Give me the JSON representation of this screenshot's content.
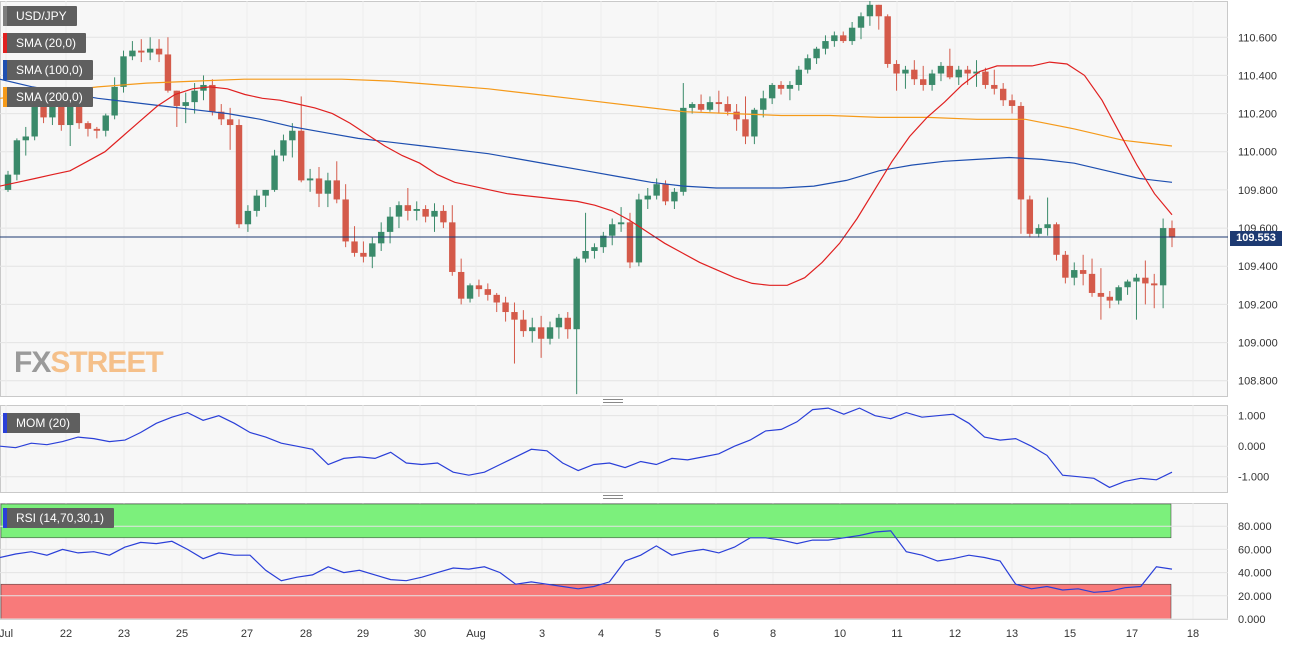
{
  "tags": {
    "symbol": "USD/JPY",
    "sma20": "SMA (20,0)",
    "sma100": "SMA (100,0)",
    "sma200": "SMA (200,0)",
    "mom": "MOM (20)",
    "rsi": "RSI (14,70,30,1)"
  },
  "watermark": {
    "fx": "FX",
    "street": "STREET"
  },
  "last_price": "109.553",
  "colors": {
    "up": "#3a8a6a",
    "down": "#d45a4a",
    "sma20": "#e02020",
    "sma100": "#1e4fb0",
    "sma200": "#f59a1a",
    "mom": "#2a3fd8",
    "rsi": "#2a3fd8",
    "rsi_over": "#7cf07c",
    "rsi_under": "#f87a7a",
    "price_line": "#1d3a72"
  },
  "chart_data": [
    {
      "type": "candlestick",
      "name": "USD/JPY",
      "x_tick_labels": [
        "Jul",
        "22",
        "23",
        "25",
        "27",
        "28",
        "29",
        "30",
        "Aug",
        "3",
        "4",
        "5",
        "6",
        "8",
        "10",
        "11",
        "12",
        "13",
        "15",
        "17",
        "18"
      ],
      "y_tick_labels": [
        "108.800",
        "109.000",
        "109.200",
        "109.400",
        "109.600",
        "109.800",
        "110.000",
        "110.200",
        "110.400",
        "110.600"
      ],
      "ylim": [
        108.72,
        110.79
      ],
      "current_price": 109.553,
      "candles": [
        [
          109.8,
          109.9,
          109.79,
          109.88
        ],
        [
          109.88,
          110.07,
          109.85,
          110.06
        ],
        [
          110.06,
          110.13,
          109.98,
          110.08
        ],
        [
          110.08,
          110.26,
          110.06,
          110.24
        ],
        [
          110.24,
          110.28,
          110.15,
          110.18
        ],
        [
          110.18,
          110.28,
          110.14,
          110.25
        ],
        [
          110.25,
          110.29,
          110.11,
          110.14
        ],
        [
          110.14,
          110.29,
          110.03,
          110.26
        ],
        [
          110.26,
          110.28,
          110.12,
          110.15
        ],
        [
          110.15,
          110.16,
          110.08,
          110.12
        ],
        [
          110.12,
          110.13,
          110.07,
          110.11
        ],
        [
          110.11,
          110.2,
          110.08,
          110.19
        ],
        [
          110.19,
          110.39,
          110.17,
          110.34
        ],
        [
          110.34,
          110.53,
          110.31,
          110.5
        ],
        [
          110.5,
          110.58,
          110.48,
          110.53
        ],
        [
          110.53,
          110.59,
          110.47,
          110.52
        ],
        [
          110.52,
          110.6,
          110.48,
          110.54
        ],
        [
          110.54,
          110.59,
          110.47,
          110.51
        ],
        [
          110.51,
          110.6,
          110.31,
          110.32
        ],
        [
          110.32,
          110.32,
          110.13,
          110.24
        ],
        [
          110.24,
          110.31,
          110.15,
          110.26
        ],
        [
          110.26,
          110.36,
          110.2,
          110.32
        ],
        [
          110.32,
          110.4,
          110.27,
          110.35
        ],
        [
          110.35,
          110.38,
          110.19,
          110.21
        ],
        [
          110.21,
          110.25,
          110.14,
          110.17
        ],
        [
          110.17,
          110.23,
          110.01,
          110.14
        ],
        [
          110.14,
          110.17,
          109.6,
          109.62
        ],
        [
          109.62,
          109.72,
          109.58,
          109.69
        ],
        [
          109.69,
          109.8,
          109.66,
          109.77
        ],
        [
          109.77,
          109.8,
          109.71,
          109.8
        ],
        [
          109.8,
          110.01,
          109.79,
          109.98
        ],
        [
          109.98,
          110.09,
          109.95,
          110.06
        ],
        [
          110.06,
          110.15,
          109.97,
          110.11
        ],
        [
          110.11,
          110.29,
          109.84,
          109.85
        ],
        [
          109.85,
          109.91,
          109.79,
          109.86
        ],
        [
          109.86,
          109.92,
          109.71,
          109.78
        ],
        [
          109.78,
          109.89,
          109.71,
          109.85
        ],
        [
          109.85,
          109.95,
          109.73,
          109.75
        ],
        [
          109.75,
          109.83,
          109.5,
          109.53
        ],
        [
          109.53,
          109.61,
          109.45,
          109.47
        ],
        [
          109.47,
          109.53,
          109.42,
          109.45
        ],
        [
          109.45,
          109.55,
          109.39,
          109.52
        ],
        [
          109.52,
          109.63,
          109.48,
          109.58
        ],
        [
          109.58,
          109.71,
          109.52,
          109.66
        ],
        [
          109.66,
          109.74,
          109.6,
          109.72
        ],
        [
          109.72,
          109.81,
          109.64,
          109.69
        ],
        [
          109.69,
          109.74,
          109.64,
          109.7
        ],
        [
          109.7,
          109.72,
          109.63,
          109.66
        ],
        [
          109.66,
          109.73,
          109.58,
          109.69
        ],
        [
          109.69,
          109.72,
          109.6,
          109.63
        ],
        [
          109.63,
          109.72,
          109.35,
          109.37
        ],
        [
          109.37,
          109.44,
          109.2,
          109.23
        ],
        [
          109.23,
          109.31,
          109.21,
          109.3
        ],
        [
          109.3,
          109.33,
          109.24,
          109.28
        ],
        [
          109.28,
          109.31,
          109.22,
          109.25
        ],
        [
          109.25,
          109.26,
          109.16,
          109.21
        ],
        [
          109.21,
          109.24,
          109.11,
          109.16
        ],
        [
          109.16,
          109.21,
          108.89,
          109.12
        ],
        [
          109.12,
          109.17,
          109.03,
          109.06
        ],
        [
          109.06,
          109.13,
          109.0,
          109.08
        ],
        [
          109.08,
          109.14,
          108.92,
          109.02
        ],
        [
          109.02,
          109.11,
          108.99,
          109.08
        ],
        [
          109.08,
          109.15,
          109.02,
          109.13
        ],
        [
          109.13,
          109.16,
          109.02,
          109.07
        ],
        [
          109.07,
          109.45,
          108.73,
          109.44
        ],
        [
          109.44,
          109.68,
          109.42,
          109.48
        ],
        [
          109.48,
          109.52,
          109.44,
          109.5
        ],
        [
          109.5,
          109.58,
          109.47,
          109.56
        ],
        [
          109.56,
          109.65,
          109.51,
          109.62
        ],
        [
          109.62,
          109.71,
          109.58,
          109.63
        ],
        [
          109.63,
          109.68,
          109.39,
          109.42
        ],
        [
          109.42,
          109.78,
          109.4,
          109.75
        ],
        [
          109.75,
          109.81,
          109.7,
          109.77
        ],
        [
          109.77,
          109.86,
          109.75,
          109.83
        ],
        [
          109.83,
          109.85,
          109.72,
          109.74
        ],
        [
          109.74,
          109.81,
          109.7,
          109.79
        ],
        [
          109.79,
          110.36,
          109.77,
          110.23
        ],
        [
          110.23,
          110.26,
          110.2,
          110.25
        ],
        [
          110.25,
          110.3,
          110.21,
          110.22
        ],
        [
          110.22,
          110.29,
          110.21,
          110.26
        ],
        [
          110.26,
          110.32,
          110.2,
          110.25
        ],
        [
          110.25,
          110.29,
          110.19,
          110.21
        ],
        [
          110.21,
          110.25,
          110.11,
          110.17
        ],
        [
          110.17,
          110.29,
          110.04,
          110.08
        ],
        [
          110.08,
          110.23,
          110.04,
          110.22
        ],
        [
          110.22,
          110.32,
          110.18,
          110.28
        ],
        [
          110.28,
          110.36,
          110.25,
          110.35
        ],
        [
          110.35,
          110.37,
          110.3,
          110.33
        ],
        [
          110.33,
          110.37,
          110.27,
          110.35
        ],
        [
          110.35,
          110.45,
          110.32,
          110.43
        ],
        [
          110.43,
          110.51,
          110.41,
          110.49
        ],
        [
          110.49,
          110.55,
          110.46,
          110.54
        ],
        [
          110.54,
          110.61,
          110.51,
          110.58
        ],
        [
          110.58,
          110.63,
          110.55,
          110.61
        ],
        [
          110.61,
          110.63,
          110.57,
          110.58
        ],
        [
          110.58,
          110.68,
          110.56,
          110.65
        ],
        [
          110.65,
          110.73,
          110.59,
          110.71
        ],
        [
          110.71,
          110.79,
          110.66,
          110.77
        ],
        [
          110.77,
          110.77,
          110.64,
          110.71
        ],
        [
          110.71,
          110.72,
          110.44,
          110.46
        ],
        [
          110.46,
          110.48,
          110.32,
          110.41
        ],
        [
          110.41,
          110.45,
          110.33,
          110.43
        ],
        [
          110.43,
          110.48,
          110.35,
          110.38
        ],
        [
          110.38,
          110.45,
          110.32,
          110.35
        ],
        [
          110.35,
          110.43,
          110.32,
          110.41
        ],
        [
          110.41,
          110.47,
          110.37,
          110.45
        ],
        [
          110.45,
          110.54,
          110.38,
          110.39
        ],
        [
          110.39,
          110.45,
          110.35,
          110.43
        ],
        [
          110.43,
          110.45,
          110.35,
          110.41
        ],
        [
          110.41,
          110.48,
          110.34,
          110.42
        ],
        [
          110.42,
          110.44,
          110.33,
          110.35
        ],
        [
          110.35,
          110.43,
          110.3,
          110.33
        ],
        [
          110.33,
          110.36,
          110.24,
          110.27
        ],
        [
          110.27,
          110.3,
          110.2,
          110.24
        ],
        [
          110.24,
          110.26,
          109.57,
          109.75
        ],
        [
          109.75,
          109.77,
          109.55,
          109.57
        ],
        [
          109.57,
          109.62,
          109.55,
          109.6
        ],
        [
          109.6,
          109.76,
          109.56,
          109.62
        ],
        [
          109.62,
          109.63,
          109.43,
          109.46
        ],
        [
          109.46,
          109.48,
          109.31,
          109.34
        ],
        [
          109.34,
          109.42,
          109.3,
          109.38
        ],
        [
          109.38,
          109.46,
          109.3,
          109.36
        ],
        [
          109.36,
          109.44,
          109.24,
          109.26
        ],
        [
          109.26,
          109.39,
          109.12,
          109.24
        ],
        [
          109.24,
          109.27,
          109.18,
          109.22
        ],
        [
          109.22,
          109.3,
          109.2,
          109.29
        ],
        [
          109.29,
          109.33,
          109.25,
          109.32
        ],
        [
          109.32,
          109.36,
          109.12,
          109.34
        ],
        [
          109.34,
          109.43,
          109.2,
          109.31
        ],
        [
          109.31,
          109.36,
          109.18,
          109.3
        ],
        [
          109.3,
          109.65,
          109.18,
          109.6
        ],
        [
          109.6,
          109.64,
          109.5,
          109.55
        ]
      ],
      "sma20": [
        109.82,
        109.84,
        109.86,
        109.88,
        109.9,
        109.95,
        110.0,
        110.08,
        110.16,
        110.24,
        110.3,
        110.33,
        110.34,
        110.33,
        110.3,
        110.28,
        110.27,
        110.25,
        110.23,
        110.2,
        110.15,
        110.09,
        110.03,
        109.98,
        109.94,
        109.88,
        109.84,
        109.82,
        109.8,
        109.78,
        109.77,
        109.76,
        109.75,
        109.74,
        109.72,
        109.69,
        109.64,
        109.58,
        109.52,
        109.47,
        109.42,
        109.38,
        109.34,
        109.31,
        109.3,
        109.3,
        109.34,
        109.42,
        109.52,
        109.65,
        109.8,
        109.95,
        110.08,
        110.18,
        110.26,
        110.35,
        110.42,
        110.45,
        110.45,
        110.45,
        110.47,
        110.46,
        110.4,
        110.27,
        110.1,
        109.93,
        109.78,
        109.67
      ],
      "sma100": [
        110.38,
        110.34,
        110.31,
        110.28,
        110.26,
        110.24,
        110.22,
        110.2,
        110.17,
        110.13,
        110.1,
        110.07,
        110.05,
        110.03,
        110.01,
        109.99,
        109.96,
        109.93,
        109.9,
        109.87,
        109.84,
        109.82,
        109.81,
        109.81,
        109.81,
        109.82,
        109.85,
        109.9,
        109.93,
        109.95,
        109.96,
        109.97,
        109.96,
        109.94,
        109.9,
        109.86,
        109.84
      ],
      "sma200": [
        110.28,
        110.31,
        110.34,
        110.36,
        110.37,
        110.38,
        110.38,
        110.38,
        110.37,
        110.35,
        110.33,
        110.3,
        110.27,
        110.24,
        110.21,
        110.2,
        110.19,
        110.19,
        110.18,
        110.18,
        110.17,
        110.17,
        110.12,
        110.06,
        110.03
      ]
    },
    {
      "type": "line",
      "name": "MOM (20)",
      "y_tick_labels": [
        "-1.000",
        "0.000",
        "1.000"
      ],
      "ylim": [
        -1.5,
        1.35
      ],
      "values": [
        0.0,
        -0.05,
        0.1,
        0.05,
        0.15,
        0.3,
        0.25,
        0.15,
        0.2,
        0.45,
        0.75,
        0.95,
        1.1,
        0.85,
        1.0,
        0.75,
        0.45,
        0.3,
        0.1,
        0.0,
        -0.1,
        -0.6,
        -0.4,
        -0.35,
        -0.4,
        -0.2,
        -0.55,
        -0.6,
        -0.55,
        -0.85,
        -0.95,
        -0.85,
        -0.6,
        -0.35,
        -0.1,
        -0.15,
        -0.55,
        -0.8,
        -0.6,
        -0.55,
        -0.7,
        -0.5,
        -0.6,
        -0.4,
        -0.45,
        -0.35,
        -0.25,
        0.0,
        0.2,
        0.5,
        0.55,
        0.8,
        1.2,
        1.25,
        1.05,
        1.25,
        1.0,
        0.9,
        1.1,
        0.95,
        1.0,
        1.05,
        0.75,
        0.3,
        0.2,
        0.25,
        0.0,
        -0.3,
        -0.95,
        -1.0,
        -1.05,
        -1.35,
        -1.15,
        -1.05,
        -1.1,
        -0.85
      ]
    },
    {
      "type": "line",
      "name": "RSI (14,70,30,1)",
      "y_tick_labels": [
        "0.000",
        "20.000",
        "40.000",
        "60.000",
        "80.000"
      ],
      "ylim": [
        0,
        100
      ],
      "overbought": 70,
      "oversold": 30,
      "values": [
        53,
        56,
        58,
        55,
        60,
        57,
        58,
        55,
        62,
        66,
        65,
        67,
        60,
        52,
        57,
        55,
        55,
        42,
        33,
        36,
        38,
        45,
        40,
        42,
        38,
        34,
        33,
        36,
        40,
        44,
        43,
        45,
        40,
        30,
        32,
        30,
        28,
        26,
        28,
        32,
        50,
        55,
        63,
        55,
        58,
        60,
        57,
        62,
        70,
        70,
        68,
        65,
        68,
        68,
        70,
        72,
        75,
        76,
        58,
        55,
        50,
        52,
        55,
        53,
        50,
        30,
        26,
        28,
        25,
        26,
        23,
        24,
        27,
        28,
        45,
        43
      ]
    }
  ]
}
